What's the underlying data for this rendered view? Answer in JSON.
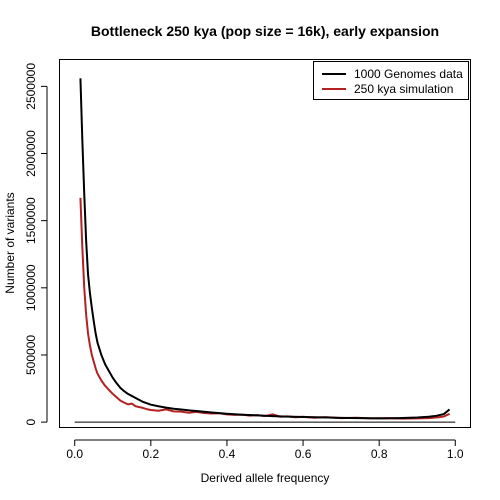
{
  "chart_data": {
    "type": "line",
    "title": "Bottleneck 250 kya (pop size = 16k), early expansion",
    "xlabel": "Derived allele frequency",
    "ylabel": "Number of variants",
    "xlim": [
      0,
      1
    ],
    "ylim": [
      -40000,
      2700000
    ],
    "x_ticks": [
      0.0,
      0.2,
      0.4,
      0.6,
      0.8,
      1.0
    ],
    "x_tick_labels": [
      "0.0",
      "0.2",
      "0.4",
      "0.6",
      "0.8",
      "1.0"
    ],
    "y_ticks": [
      0,
      500000,
      1000000,
      1500000,
      2000000,
      2500000
    ],
    "y_tick_labels": [
      "0",
      "500000",
      "1000000",
      "1500000",
      "2000000",
      "2500000"
    ],
    "reference_line_y": 0,
    "grid": false,
    "legend_position": "top-right",
    "colors": {
      "genomes": "#000000",
      "simulation": "#b22222"
    },
    "series": [
      {
        "name": "1000 Genomes data",
        "color": "#000000",
        "points": [
          [
            0.015,
            2560000
          ],
          [
            0.02,
            2100000
          ],
          [
            0.025,
            1700000
          ],
          [
            0.03,
            1350000
          ],
          [
            0.035,
            1100000
          ],
          [
            0.04,
            960000
          ],
          [
            0.045,
            850000
          ],
          [
            0.05,
            750000
          ],
          [
            0.055,
            660000
          ],
          [
            0.06,
            590000
          ],
          [
            0.07,
            500000
          ],
          [
            0.08,
            430000
          ],
          [
            0.09,
            380000
          ],
          [
            0.1,
            330000
          ],
          [
            0.11,
            290000
          ],
          [
            0.12,
            255000
          ],
          [
            0.13,
            230000
          ],
          [
            0.14,
            210000
          ],
          [
            0.15,
            195000
          ],
          [
            0.16,
            180000
          ],
          [
            0.17,
            165000
          ],
          [
            0.18,
            150000
          ],
          [
            0.19,
            140000
          ],
          [
            0.2,
            130000
          ],
          [
            0.22,
            118000
          ],
          [
            0.24,
            108000
          ],
          [
            0.26,
            100000
          ],
          [
            0.28,
            94000
          ],
          [
            0.3,
            88000
          ],
          [
            0.33,
            80000
          ],
          [
            0.36,
            72000
          ],
          [
            0.4,
            62000
          ],
          [
            0.44,
            55000
          ],
          [
            0.48,
            50000
          ],
          [
            0.52,
            45000
          ],
          [
            0.56,
            41000
          ],
          [
            0.6,
            38000
          ],
          [
            0.65,
            35000
          ],
          [
            0.7,
            32000
          ],
          [
            0.75,
            30000
          ],
          [
            0.8,
            28000
          ],
          [
            0.85,
            30000
          ],
          [
            0.9,
            34000
          ],
          [
            0.93,
            40000
          ],
          [
            0.95,
            47000
          ],
          [
            0.97,
            60000
          ],
          [
            0.985,
            95000
          ]
        ]
      },
      {
        "name": "250 kya simulation",
        "color": "#b22222",
        "points": [
          [
            0.015,
            1670000
          ],
          [
            0.02,
            1300000
          ],
          [
            0.025,
            1000000
          ],
          [
            0.03,
            800000
          ],
          [
            0.035,
            660000
          ],
          [
            0.04,
            570000
          ],
          [
            0.045,
            500000
          ],
          [
            0.05,
            450000
          ],
          [
            0.055,
            400000
          ],
          [
            0.06,
            360000
          ],
          [
            0.07,
            310000
          ],
          [
            0.08,
            270000
          ],
          [
            0.09,
            240000
          ],
          [
            0.1,
            210000
          ],
          [
            0.11,
            185000
          ],
          [
            0.12,
            160000
          ],
          [
            0.13,
            145000
          ],
          [
            0.14,
            132000
          ],
          [
            0.15,
            138000
          ],
          [
            0.16,
            118000
          ],
          [
            0.17,
            112000
          ],
          [
            0.18,
            105000
          ],
          [
            0.19,
            96000
          ],
          [
            0.2,
            90000
          ],
          [
            0.22,
            85000
          ],
          [
            0.24,
            95000
          ],
          [
            0.26,
            80000
          ],
          [
            0.28,
            78000
          ],
          [
            0.3,
            70000
          ],
          [
            0.32,
            76000
          ],
          [
            0.34,
            68000
          ],
          [
            0.36,
            64000
          ],
          [
            0.38,
            66000
          ],
          [
            0.4,
            58000
          ],
          [
            0.42,
            54000
          ],
          [
            0.44,
            56000
          ],
          [
            0.46,
            48000
          ],
          [
            0.48,
            52000
          ],
          [
            0.5,
            45000
          ],
          [
            0.52,
            58000
          ],
          [
            0.54,
            40000
          ],
          [
            0.56,
            43000
          ],
          [
            0.58,
            36000
          ],
          [
            0.6,
            40000
          ],
          [
            0.63,
            33000
          ],
          [
            0.66,
            37000
          ],
          [
            0.7,
            30000
          ],
          [
            0.74,
            33000
          ],
          [
            0.78,
            28000
          ],
          [
            0.82,
            30000
          ],
          [
            0.86,
            26000
          ],
          [
            0.9,
            28000
          ],
          [
            0.93,
            30000
          ],
          [
            0.95,
            34000
          ],
          [
            0.97,
            42000
          ],
          [
            0.985,
            62000
          ]
        ]
      }
    ]
  }
}
